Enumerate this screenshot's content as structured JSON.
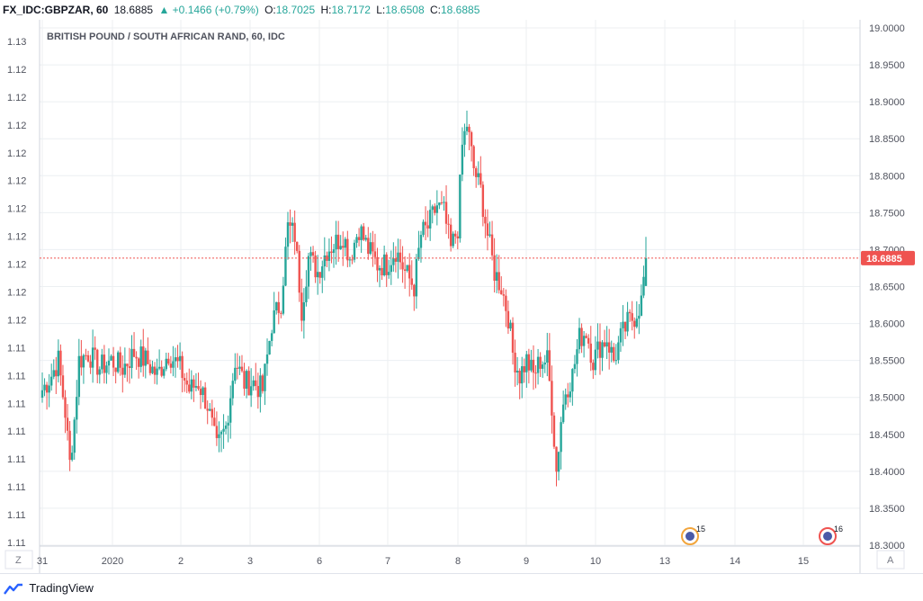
{
  "ohlc_bar": {
    "symbol": "FX_IDC:GBPZAR, 60",
    "last": "18.6885",
    "change": "+0.1466 (+0.79%)",
    "o_label": "O:",
    "o_value": "18.7025",
    "h_label": "H:",
    "h_value": "18.7172",
    "l_label": "L:",
    "l_value": "18.6508",
    "c_label": "C:",
    "c_value": "18.6885"
  },
  "colors": {
    "up": "#26a69a",
    "down": "#ef5350",
    "grid": "#eceff2",
    "price_line": "#ef5350"
  },
  "chart_data": {
    "type": "candlestick",
    "title": "BRITISH POUND / SOUTH AFRICAN RAND, 60, IDC",
    "right_axis_ticks": [
      "19.0000",
      "18.9500",
      "18.9000",
      "18.8500",
      "18.8000",
      "18.7500",
      "18.7000",
      "18.6500",
      "18.6000",
      "18.5500",
      "18.5000",
      "18.4500",
      "18.4000",
      "18.3500",
      "18.3000"
    ],
    "left_axis_ticks": [
      "1.13",
      "1.12",
      "1.12",
      "1.12",
      "1.12",
      "1.12",
      "1.12",
      "1.12",
      "1.12",
      "1.12",
      "1.12",
      "1.11",
      "1.11",
      "1.11",
      "1.11",
      "1.11",
      "1.11",
      "1.11",
      "1.11"
    ],
    "x_ticks": [
      "31",
      "2020",
      "2",
      "3",
      "6",
      "7",
      "8",
      "9",
      "10",
      "13",
      "14",
      "15"
    ],
    "ylim": [
      18.3,
      19.0
    ],
    "current_price": "18.6885",
    "event_markers": [
      "15",
      "16"
    ],
    "anchors": [
      [
        0,
        18.51
      ],
      [
        4,
        18.53
      ],
      [
        7,
        18.55
      ],
      [
        10,
        18.48
      ],
      [
        12,
        18.41
      ],
      [
        14,
        18.47
      ],
      [
        16,
        18.55
      ],
      [
        20,
        18.56
      ],
      [
        25,
        18.54
      ],
      [
        30,
        18.55
      ],
      [
        35,
        18.54
      ],
      [
        40,
        18.56
      ],
      [
        45,
        18.55
      ],
      [
        50,
        18.53
      ],
      [
        55,
        18.56
      ],
      [
        60,
        18.54
      ],
      [
        64,
        18.51
      ],
      [
        68,
        18.52
      ],
      [
        72,
        18.49
      ],
      [
        76,
        18.43
      ],
      [
        80,
        18.46
      ],
      [
        84,
        18.55
      ],
      [
        88,
        18.52
      ],
      [
        92,
        18.52
      ],
      [
        96,
        18.51
      ],
      [
        100,
        18.6
      ],
      [
        104,
        18.63
      ],
      [
        107,
        18.73
      ],
      [
        110,
        18.72
      ],
      [
        113,
        18.62
      ],
      [
        116,
        18.69
      ],
      [
        120,
        18.67
      ],
      [
        124,
        18.7
      ],
      [
        128,
        18.71
      ],
      [
        131,
        18.72
      ],
      [
        134,
        18.69
      ],
      [
        138,
        18.73
      ],
      [
        142,
        18.7
      ],
      [
        146,
        18.68
      ],
      [
        150,
        18.68
      ],
      [
        154,
        18.7
      ],
      [
        158,
        18.67
      ],
      [
        162,
        18.65
      ],
      [
        165,
        18.72
      ],
      [
        168,
        18.73
      ],
      [
        172,
        18.76
      ],
      [
        175,
        18.75
      ],
      [
        178,
        18.7
      ],
      [
        181,
        18.73
      ],
      [
        183,
        18.84
      ],
      [
        185,
        18.87
      ],
      [
        188,
        18.81
      ],
      [
        191,
        18.78
      ],
      [
        194,
        18.72
      ],
      [
        197,
        18.67
      ],
      [
        200,
        18.65
      ],
      [
        203,
        18.61
      ],
      [
        205,
        18.56
      ],
      [
        208,
        18.53
      ],
      [
        211,
        18.55
      ],
      [
        214,
        18.53
      ],
      [
        217,
        18.55
      ],
      [
        220,
        18.55
      ],
      [
        222,
        18.49
      ],
      [
        224,
        18.4
      ],
      [
        226,
        18.47
      ],
      [
        228,
        18.51
      ],
      [
        231,
        18.53
      ],
      [
        234,
        18.58
      ],
      [
        237,
        18.59
      ],
      [
        240,
        18.55
      ],
      [
        243,
        18.57
      ],
      [
        246,
        18.58
      ],
      [
        249,
        18.55
      ],
      [
        252,
        18.58
      ],
      [
        255,
        18.6
      ],
      [
        258,
        18.61
      ],
      [
        261,
        18.63
      ],
      [
        263,
        18.69
      ]
    ]
  },
  "axis_buttons": {
    "left": "Z",
    "right": "A"
  },
  "footer": {
    "brand": "TradingView"
  }
}
